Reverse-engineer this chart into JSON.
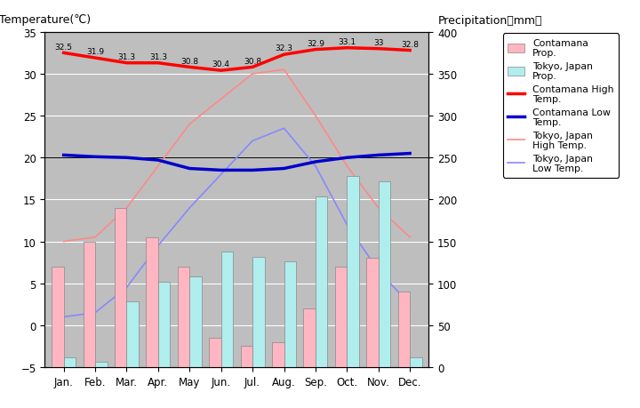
{
  "months": [
    "Jan.",
    "Feb.",
    "Mar.",
    "Apr.",
    "May",
    "Jun.",
    "Jul.",
    "Aug.",
    "Sep.",
    "Oct.",
    "Nov.",
    "Dec."
  ],
  "contamana_precip_mm": [
    120,
    150,
    190,
    155,
    120,
    35,
    25,
    30,
    70,
    120,
    130,
    90
  ],
  "tokyo_precip_mm": [
    12,
    6,
    78,
    102,
    108,
    138,
    132,
    126,
    204,
    228,
    222,
    12
  ],
  "contamana_high": [
    32.5,
    31.9,
    31.3,
    31.3,
    30.8,
    30.4,
    30.8,
    32.3,
    32.9,
    33.1,
    33.0,
    32.8
  ],
  "contamana_low": [
    20.3,
    20.1,
    20.0,
    19.7,
    18.7,
    18.5,
    18.5,
    18.7,
    19.5,
    20.0,
    20.3,
    20.5
  ],
  "tokyo_high": [
    10.0,
    10.5,
    14.0,
    19.0,
    24.0,
    27.0,
    30.0,
    30.5,
    25.0,
    19.0,
    14.0,
    10.5
  ],
  "tokyo_low": [
    1.0,
    1.5,
    4.5,
    9.5,
    14.0,
    18.0,
    22.0,
    23.5,
    19.0,
    12.0,
    6.5,
    2.5
  ],
  "contamana_precip_color": "#FFB6C1",
  "tokyo_precip_color": "#B0EEEE",
  "contamana_high_color": "#FF0000",
  "contamana_low_color": "#0000CC",
  "tokyo_high_color": "#FF8888",
  "tokyo_low_color": "#8888FF",
  "bg_color": "#BEBEBE",
  "ylim_left": [
    -5,
    35
  ],
  "ylim_right": [
    0,
    400
  ],
  "title_left": "Temperature(℃)",
  "title_right": "Precipitation（mm）",
  "legend_labels": [
    "Contamana\nProp.",
    "Tokyo, Japan\nProp.",
    "Contamana High\nTemp.",
    "Contamana Low\nTemp.",
    "Tokyo, Japan\nHigh Temp.",
    "Tokyo, Japan\nLow Temp."
  ],
  "annotations": [
    "32.5",
    "31.9",
    "31.3",
    "31.3",
    "30.8",
    "30.4",
    "30.8",
    "32.3",
    "32.9",
    "33.1",
    "33",
    "32.8"
  ]
}
